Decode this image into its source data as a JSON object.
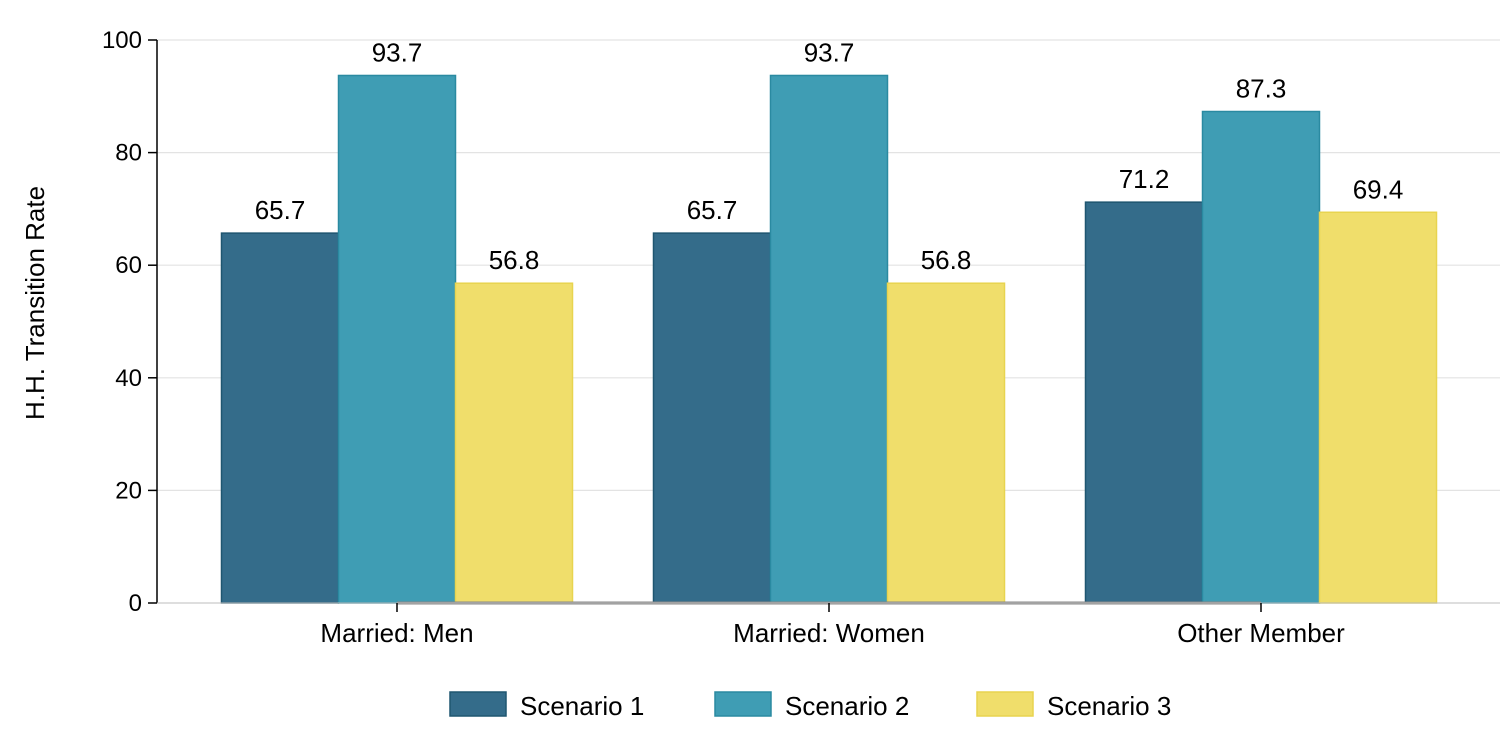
{
  "chart_data": {
    "type": "bar",
    "categories": [
      "Married: Men",
      "Married: Women",
      "Other Member"
    ],
    "series": [
      {
        "name": "Scenario 1",
        "values": [
          65.7,
          65.7,
          71.2
        ],
        "color": "#346c8a",
        "stroke": "#1f5670"
      },
      {
        "name": "Scenario 2",
        "values": [
          93.7,
          93.7,
          87.3
        ],
        "color": "#3f9db4",
        "stroke": "#2a8aa1"
      },
      {
        "name": "Scenario 3",
        "values": [
          56.8,
          56.8,
          69.4
        ],
        "color": "#f0de6b",
        "stroke": "#e8d44f"
      }
    ],
    "data_labels": [
      [
        "65.7",
        "65.7",
        "71.2"
      ],
      [
        "93.7",
        "93.7",
        "87.3"
      ],
      [
        "56.8",
        "56.8",
        "69.4"
      ]
    ],
    "ylabel": "H.H. Transition Rate",
    "xlabel": "",
    "ylim": [
      0,
      100
    ],
    "yticks": [
      0,
      20,
      40,
      60,
      80,
      100
    ],
    "ytick_labels": [
      "0",
      "20",
      "40",
      "60",
      "80",
      "100"
    ],
    "grid": true,
    "legend_position": "bottom"
  }
}
